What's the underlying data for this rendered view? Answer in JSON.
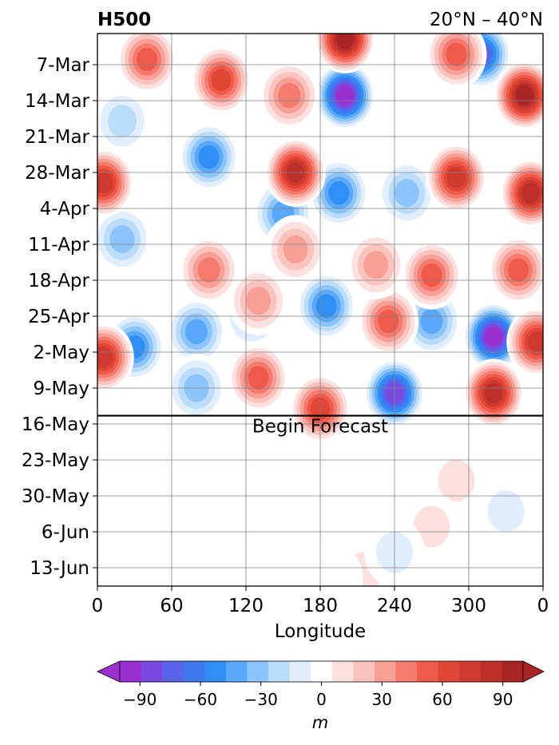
{
  "chart_data": {
    "type": "heatmap",
    "title_left": "H500",
    "title_right": "20°N – 40°N",
    "xlabel": "Longitude",
    "xticks": [
      "0",
      "60",
      "120",
      "180",
      "240",
      "300",
      "0"
    ],
    "yticks": [
      "7-Mar",
      "14-Mar",
      "21-Mar",
      "28-Mar",
      "4-Apr",
      "11-Apr",
      "18-Apr",
      "25-Apr",
      "2-May",
      "9-May",
      "16-May",
      "23-May",
      "30-May",
      "6-Jun",
      "13-Jun"
    ],
    "forecast_label": "Begin Forecast",
    "colorbar": {
      "label": "m",
      "ticks": [
        "−90",
        "−60",
        "−30",
        "0",
        "30",
        "60",
        "90"
      ],
      "levels": [
        -100,
        -90,
        -80,
        -70,
        -60,
        -50,
        -40,
        -30,
        -20,
        -10,
        10,
        20,
        30,
        40,
        50,
        60,
        70,
        80,
        90,
        100
      ],
      "colors": [
        "#9b2fd0",
        "#7a4ae0",
        "#5a62ea",
        "#3f78f0",
        "#2f8ff5",
        "#5aa8fa",
        "#8cc4fb",
        "#bcdcfc",
        "#e0eefd",
        "#ffffff",
        "#fde1e0",
        "#fbc3bd",
        "#f8a097",
        "#f57b6f",
        "#ef5a4a",
        "#e04535",
        "#cf3a30",
        "#bd2f29",
        "#a92524"
      ],
      "under_color": "#9b2fd0",
      "over_color": "#a92524"
    },
    "anomaly_features": [
      {
        "lon": 200,
        "date": "13-Mar",
        "value": -95
      },
      {
        "lon": 310,
        "date": "5-Mar",
        "value": -80
      },
      {
        "lon": 320,
        "date": "29-Apr",
        "value": -95
      },
      {
        "lon": 240,
        "date": "10-May",
        "value": -85
      },
      {
        "lon": 90,
        "date": "25-Mar",
        "value": -55
      },
      {
        "lon": 30,
        "date": "1-May",
        "value": -60
      },
      {
        "lon": 80,
        "date": "28-Apr",
        "value": -50
      },
      {
        "lon": 185,
        "date": "23-Apr",
        "value": -60
      },
      {
        "lon": 195,
        "date": "1-Apr",
        "value": -55
      },
      {
        "lon": 150,
        "date": "5-Apr",
        "value": -50
      },
      {
        "lon": 20,
        "date": "10-Apr",
        "value": -40
      },
      {
        "lon": 270,
        "date": "26-Apr",
        "value": -50
      },
      {
        "lon": 250,
        "date": "1-Apr",
        "value": -40
      },
      {
        "lon": 80,
        "date": "9-May",
        "value": -40
      },
      {
        "lon": 125,
        "date": "25-Apr",
        "value": -30
      },
      {
        "lon": 20,
        "date": "18-Mar",
        "value": -30
      },
      {
        "lon": 200,
        "date": "2-Mar",
        "value": 100
      },
      {
        "lon": 100,
        "date": "10-Mar",
        "value": 70
      },
      {
        "lon": 40,
        "date": "6-Mar",
        "value": 60
      },
      {
        "lon": 160,
        "date": "28-Mar",
        "value": 90
      },
      {
        "lon": 345,
        "date": "13-Mar",
        "value": 100
      },
      {
        "lon": 350,
        "date": "1-Apr",
        "value": 90
      },
      {
        "lon": 290,
        "date": "29-Mar",
        "value": 80
      },
      {
        "lon": 5,
        "date": "30-Mar",
        "value": 80
      },
      {
        "lon": 5,
        "date": "3-May",
        "value": 75
      },
      {
        "lon": 320,
        "date": "10-May",
        "value": 85
      },
      {
        "lon": 355,
        "date": "30-Apr",
        "value": 80
      },
      {
        "lon": 235,
        "date": "26-Apr",
        "value": 60
      },
      {
        "lon": 180,
        "date": "13-May",
        "value": 70
      },
      {
        "lon": 130,
        "date": "7-May",
        "value": 55
      },
      {
        "lon": 90,
        "date": "16-Apr",
        "value": 50
      },
      {
        "lon": 270,
        "date": "17-Apr",
        "value": 60
      },
      {
        "lon": 340,
        "date": "16-Apr",
        "value": 60
      },
      {
        "lon": 225,
        "date": "15-Apr",
        "value": 40
      },
      {
        "lon": 290,
        "date": "5-Mar",
        "value": 60
      },
      {
        "lon": 160,
        "date": "12-Apr",
        "value": 40
      },
      {
        "lon": 155,
        "date": "13-Mar",
        "value": 50
      },
      {
        "lon": 130,
        "date": "22-Apr",
        "value": 40
      },
      {
        "lon": 290,
        "date": "27-May",
        "value": 18
      },
      {
        "lon": 270,
        "date": "5-Jun",
        "value": 15
      },
      {
        "lon": 215,
        "date": "14-Jun",
        "value": 15
      },
      {
        "lon": 330,
        "date": "2-Jun",
        "value": -15
      },
      {
        "lon": 10,
        "date": "22-May",
        "value": -12
      },
      {
        "lon": 240,
        "date": "10-Jun",
        "value": -15
      },
      {
        "lon": 190,
        "date": "15-Jun",
        "value": -12
      },
      {
        "lon": 220,
        "date": "23-May",
        "value": -12
      }
    ]
  }
}
